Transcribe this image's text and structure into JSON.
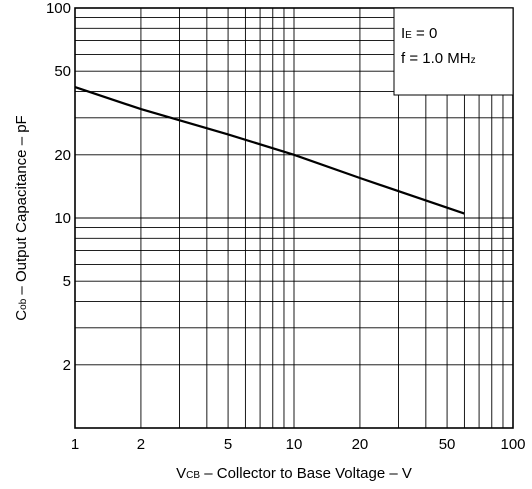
{
  "chart_data": {
    "type": "line",
    "x_scale": "log",
    "y_scale": "log",
    "xlim": [
      1,
      100
    ],
    "ylim": [
      1,
      100
    ],
    "grid": true,
    "xlabel_parts": [
      "V",
      "CB",
      " – Collector to Base Voltage – V"
    ],
    "ylabel_parts": [
      "C",
      "ob",
      " – Output Capacitance – pF"
    ],
    "x_ticks": [
      "1",
      "2",
      "5",
      "10",
      "20",
      "50",
      "100"
    ],
    "x_tick_values": [
      1,
      2,
      5,
      10,
      20,
      50,
      100
    ],
    "y_ticks": [
      "2",
      "5",
      "10",
      "20",
      "50",
      "100"
    ],
    "y_tick_values": [
      2,
      5,
      10,
      20,
      50,
      100
    ],
    "annotation_lines": [
      {
        "parts": [
          "I",
          "E",
          " = 0"
        ]
      },
      {
        "parts": [
          "f = 1.0 MH",
          "z",
          ""
        ]
      }
    ],
    "series": [
      {
        "x": [
          1,
          2,
          5,
          10,
          20,
          60
        ],
        "y": [
          42,
          33,
          25,
          20,
          15.5,
          10.5
        ]
      }
    ]
  }
}
